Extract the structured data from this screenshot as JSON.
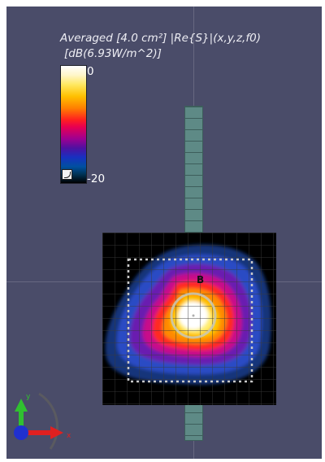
{
  "colorbar": {
    "title": "Averaged [4.0 cm²] |Re{S}|(x,y,z,f0)",
    "unit": "[dB(6.93W/m^2)]",
    "max_label": "0",
    "min_label": "-20",
    "icon": "colormap-icon"
  },
  "field_map": {
    "marker_label": "B"
  },
  "axes": {
    "x_label": "x",
    "y_label": "y",
    "x_color": "#e02020",
    "y_color": "#30c030",
    "z_color": "#2030d0"
  },
  "colors": {
    "viewport_background": "#4a4c69",
    "phantom_strip": "#5e8a86"
  }
}
